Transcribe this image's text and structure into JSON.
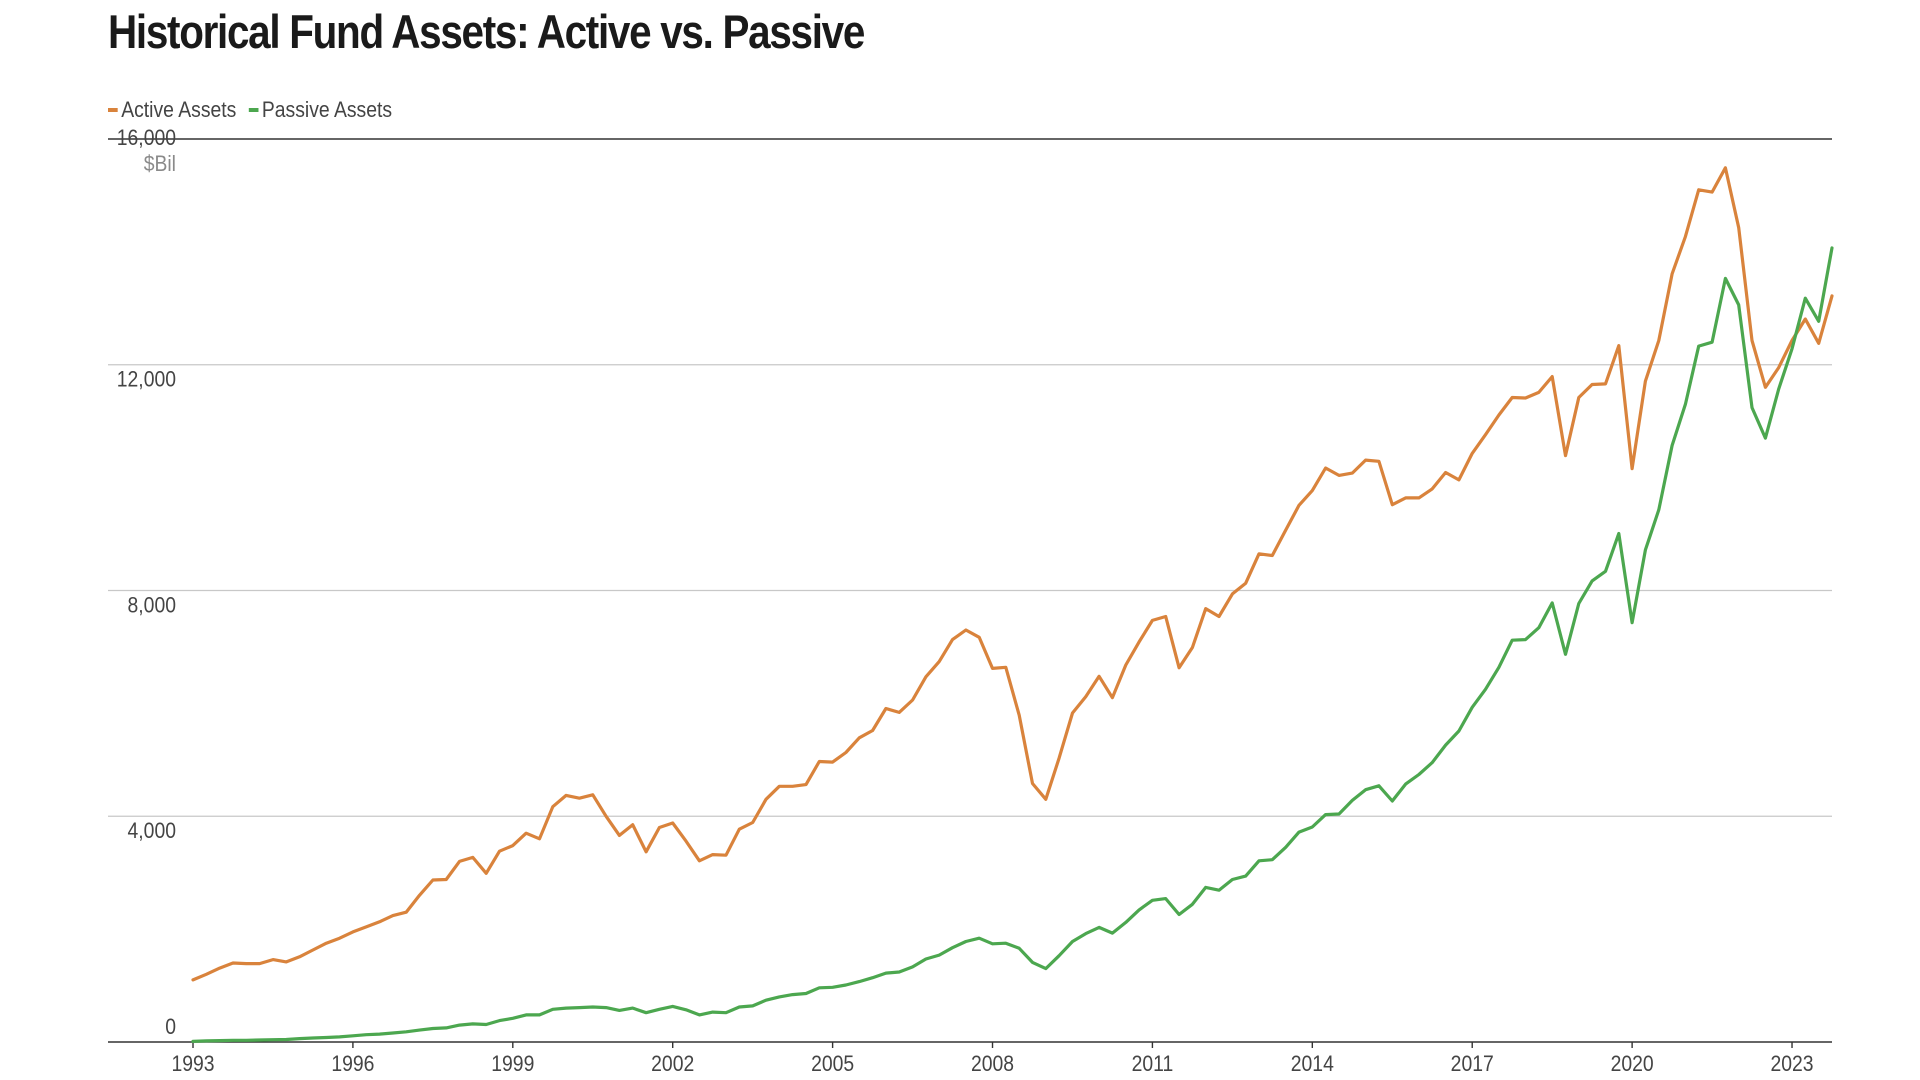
{
  "chart_data": {
    "type": "line",
    "title": "Historical Fund Assets: Active vs. Passive",
    "ylabel": "$Bil",
    "ylim": [
      0,
      16000
    ],
    "y_ticks": [
      0,
      4000,
      8000,
      12000,
      16000
    ],
    "y_tick_labels": [
      "0",
      "4,000",
      "8,000",
      "12,000",
      "16,000"
    ],
    "xlim": [
      1993,
      2023.75
    ],
    "x_ticks": [
      1993,
      1996,
      1999,
      2002,
      2005,
      2008,
      2011,
      2014,
      2017,
      2020,
      2023
    ],
    "x_tick_labels": [
      "1993",
      "1996",
      "1999",
      "2002",
      "2005",
      "2008",
      "2011",
      "2014",
      "2017",
      "2020",
      "2023"
    ],
    "grid": "horizontal",
    "legend_position": "top-left",
    "x": [
      1993.0,
      1993.25,
      1993.5,
      1993.75,
      1994.0,
      1994.25,
      1994.5,
      1994.75,
      1995.0,
      1995.25,
      1995.5,
      1995.75,
      1996.0,
      1996.25,
      1996.5,
      1996.75,
      1997.0,
      1997.25,
      1997.5,
      1997.75,
      1998.0,
      1998.25,
      1998.5,
      1998.75,
      1999.0,
      1999.25,
      1999.5,
      1999.75,
      2000.0,
      2000.25,
      2000.5,
      2000.75,
      2001.0,
      2001.25,
      2001.5,
      2001.75,
      2002.0,
      2002.25,
      2002.5,
      2002.75,
      2003.0,
      2003.25,
      2003.5,
      2003.75,
      2004.0,
      2004.25,
      2004.5,
      2004.75,
      2005.0,
      2005.25,
      2005.5,
      2005.75,
      2006.0,
      2006.25,
      2006.5,
      2006.75,
      2007.0,
      2007.25,
      2007.5,
      2007.75,
      2008.0,
      2008.25,
      2008.5,
      2008.75,
      2009.0,
      2009.25,
      2009.5,
      2009.75,
      2010.0,
      2010.25,
      2010.5,
      2010.75,
      2011.0,
      2011.25,
      2011.5,
      2011.75,
      2012.0,
      2012.25,
      2012.5,
      2012.75,
      2013.0,
      2013.25,
      2013.5,
      2013.75,
      2014.0,
      2014.25,
      2014.5,
      2014.75,
      2015.0,
      2015.25,
      2015.5,
      2015.75,
      2016.0,
      2016.25,
      2016.5,
      2016.75,
      2017.0,
      2017.25,
      2017.5,
      2017.75,
      2018.0,
      2018.25,
      2018.5,
      2018.75,
      2019.0,
      2019.25,
      2019.5,
      2019.75,
      2020.0,
      2020.25,
      2020.5,
      2020.75,
      2021.0,
      2021.25,
      2021.5,
      2021.75,
      2022.0,
      2022.25,
      2022.5,
      2022.75,
      2023.0,
      2023.25,
      2023.5,
      2023.75
    ],
    "series": [
      {
        "name": "Active Assets",
        "color": "#d9833c",
        "values": [
          1100,
          1200,
          1310,
          1400,
          1390,
          1390,
          1460,
          1420,
          1510,
          1630,
          1750,
          1840,
          1950,
          2040,
          2130,
          2240,
          2300,
          2600,
          2870,
          2880,
          3200,
          3270,
          2990,
          3380,
          3480,
          3700,
          3600,
          4170,
          4370,
          4320,
          4380,
          4000,
          3660,
          3850,
          3370,
          3800,
          3880,
          3560,
          3210,
          3320,
          3310,
          3770,
          3890,
          4300,
          4530,
          4530,
          4560,
          4970,
          4960,
          5130,
          5390,
          5520,
          5910,
          5840,
          6060,
          6470,
          6740,
          7130,
          7300,
          7170,
          6620,
          6640,
          5790,
          4580,
          4300,
          5030,
          5830,
          6120,
          6480,
          6100,
          6680,
          7090,
          7470,
          7540,
          6630,
          6990,
          7680,
          7540,
          7940,
          8130,
          8650,
          8620,
          9070,
          9510,
          9770,
          10170,
          10040,
          10080,
          10310,
          10290,
          9520,
          9640,
          9640,
          9800,
          10090,
          9960,
          10430,
          10760,
          11110,
          11420,
          11410,
          11510,
          11790,
          10390,
          11420,
          11650,
          11660,
          12340,
          10160,
          11710,
          12430,
          13610,
          14270,
          15100,
          15060,
          15490,
          14430,
          12430,
          11600,
          11950,
          12430,
          12810,
          12380,
          13220
        ]
      },
      {
        "name": "Passive Assets",
        "color": "#4ca74f",
        "values": [
          10,
          20,
          25,
          30,
          30,
          35,
          40,
          45,
          60,
          70,
          80,
          90,
          110,
          130,
          140,
          160,
          180,
          210,
          240,
          250,
          300,
          320,
          310,
          380,
          420,
          480,
          480,
          580,
          600,
          610,
          620,
          610,
          560,
          600,
          520,
          580,
          630,
          570,
          480,
          530,
          520,
          620,
          640,
          740,
          800,
          840,
          860,
          960,
          970,
          1010,
          1070,
          1140,
          1220,
          1240,
          1330,
          1470,
          1540,
          1670,
          1780,
          1840,
          1740,
          1750,
          1660,
          1410,
          1300,
          1530,
          1780,
          1920,
          2030,
          1930,
          2120,
          2340,
          2510,
          2540,
          2260,
          2440,
          2740,
          2690,
          2880,
          2940,
          3210,
          3230,
          3450,
          3720,
          3810,
          4030,
          4040,
          4280,
          4470,
          4540,
          4270,
          4570,
          4740,
          4950,
          5260,
          5510,
          5930,
          6250,
          6640,
          7120,
          7130,
          7340,
          7780,
          6870,
          7770,
          8170,
          8340,
          9010,
          7430,
          8720,
          9430,
          10570,
          11300,
          12330,
          12400,
          13530,
          13060,
          11240,
          10700,
          11570,
          12280,
          13180,
          12770,
          14070
        ]
      }
    ]
  }
}
